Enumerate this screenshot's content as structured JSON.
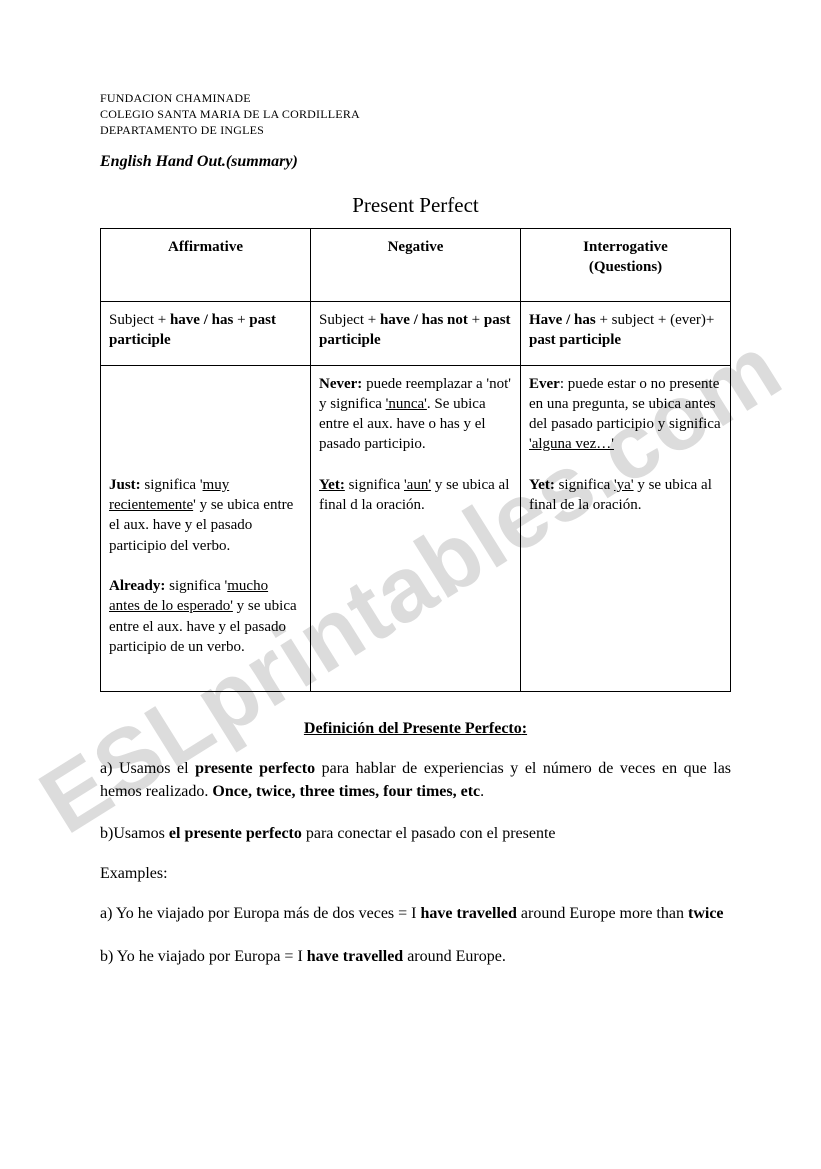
{
  "watermark_text": "ESLprintables.com",
  "header": {
    "line1": "FUNDACION CHAMINADE",
    "line2": "COLEGIO SANTA MARIA DE LA CORDILLERA",
    "line3": "DEPARTAMENTO DE INGLES"
  },
  "handout_title": "English Hand Out.(summary)",
  "main_title": "Present Perfect",
  "table": {
    "headers": {
      "affirmative": "Affirmative",
      "negative": "Negative",
      "interrogative_l1": "Interrogative",
      "interrogative_l2": "(Questions)"
    },
    "formulas": {
      "aff_pre": "Subject + ",
      "aff_bold1": "have / has",
      "aff_mid": " + ",
      "aff_bold2": "past participle",
      "neg_pre": "Subject + ",
      "neg_bold1": "have / has not",
      "neg_mid": " + ",
      "neg_bold2": "past participle",
      "int_bold1": "Have / has",
      "int_mid1": " + subject + (ever)+ ",
      "int_bold2": "past participle"
    },
    "notes": {
      "aff_just_label": "Just:",
      "aff_just_pre": " significa '",
      "aff_just_u": "muy recientemente",
      "aff_just_post": "' y se ubica entre el aux. have y el pasado participio del verbo.",
      "aff_already_label": "Already:",
      "aff_already_pre": " significa '",
      "aff_already_u": "mucho antes de lo esperado'",
      "aff_already_post": " y se ubica entre el aux. have y el pasado participio de un verbo.",
      "neg_never_label": "Never:",
      "neg_never_pre": " puede reemplazar a 'not' y significa ",
      "neg_never_u": "'nunca'",
      "neg_never_post": ". Se ubica entre el aux. have o has y el pasado participio.",
      "neg_yet_label": "Yet:",
      "neg_yet_pre": " significa ",
      "neg_yet_u": "'aun'",
      "neg_yet_post": " y se ubica al final d la oración.",
      "int_ever_label": "Ever",
      "int_ever_pre": ": puede estar o no presente en una pregunta, se ubica antes del pasado participio y significa ",
      "int_ever_u": "'alguna vez…'",
      "int_yet_label": "Yet:",
      "int_yet_pre": " significa ",
      "int_yet_u": "'ya'",
      "int_yet_post": " y  se ubica al final de la oración."
    }
  },
  "definition": {
    "title": "Definición del Presente Perfecto",
    "colon": ":",
    "a_pre": "a) Usamos el ",
    "a_b1": "presente perfecto",
    "a_mid": " para hablar de experiencias y el número de veces en que las hemos realizado. ",
    "a_b2": "Once, twice, three times, four times, etc",
    "a_post": ".",
    "b_pre": "b)Usamos ",
    "b_b1": "el presente perfecto",
    "b_post": " para conectar el pasado con el presente",
    "examples_label": "Examples:",
    "ex_a_pre": "a) Yo he viajado por Europa más de dos veces  = I ",
    "ex_a_b1": "have travelled",
    "ex_a_mid": " around Europe more than ",
    "ex_a_b2": "twice",
    "ex_b_pre": "b) Yo he viajado por Europa = I ",
    "ex_b_b1": "have travelled",
    "ex_b_post": " around Europe."
  }
}
